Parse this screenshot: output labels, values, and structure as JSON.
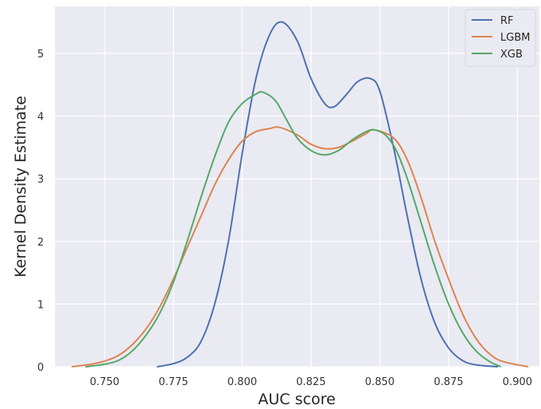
{
  "chart_data": {
    "type": "line",
    "title": "",
    "xlabel": "AUC score",
    "ylabel": "Kernel Density Estimate",
    "xlim": [
      0.732,
      0.908
    ],
    "ylim": [
      0,
      5.75
    ],
    "xticks": [
      0.75,
      0.775,
      0.8,
      0.825,
      0.85,
      0.875,
      0.9
    ],
    "xtick_labels": [
      "0.750",
      "0.775",
      "0.800",
      "0.825",
      "0.850",
      "0.875",
      "0.900"
    ],
    "yticks": [
      0,
      1,
      2,
      3,
      4,
      5
    ],
    "ytick_labels": [
      "0",
      "1",
      "2",
      "3",
      "4",
      "5"
    ],
    "grid": true,
    "legend_position": "top-right",
    "background": "#EAEAF2",
    "series": [
      {
        "name": "RF",
        "color": "#4C72B0",
        "x": [
          0.769,
          0.775,
          0.78,
          0.785,
          0.79,
          0.795,
          0.8,
          0.805,
          0.81,
          0.8145,
          0.82,
          0.825,
          0.83,
          0.8335,
          0.838,
          0.842,
          0.8465,
          0.85,
          0.855,
          0.86,
          0.865,
          0.87,
          0.875,
          0.88,
          0.885,
          0.893
        ],
        "y": [
          0.0,
          0.05,
          0.15,
          0.4,
          1.0,
          2.0,
          3.4,
          4.6,
          5.3,
          5.5,
          5.2,
          4.6,
          4.2,
          4.15,
          4.35,
          4.55,
          4.6,
          4.4,
          3.5,
          2.4,
          1.4,
          0.7,
          0.3,
          0.1,
          0.03,
          0.0
        ]
      },
      {
        "name": "LGBM",
        "color": "#DD8452",
        "x": [
          0.738,
          0.745,
          0.75,
          0.755,
          0.76,
          0.765,
          0.77,
          0.775,
          0.78,
          0.785,
          0.79,
          0.795,
          0.8,
          0.805,
          0.81,
          0.8135,
          0.82,
          0.825,
          0.83,
          0.835,
          0.84,
          0.845,
          0.848,
          0.855,
          0.86,
          0.865,
          0.87,
          0.875,
          0.88,
          0.885,
          0.89,
          0.895,
          0.904
        ],
        "y": [
          0.0,
          0.04,
          0.09,
          0.18,
          0.35,
          0.6,
          0.95,
          1.4,
          1.9,
          2.4,
          2.9,
          3.3,
          3.6,
          3.75,
          3.8,
          3.82,
          3.7,
          3.55,
          3.48,
          3.5,
          3.6,
          3.72,
          3.78,
          3.65,
          3.3,
          2.7,
          2.0,
          1.4,
          0.85,
          0.45,
          0.2,
          0.08,
          0.0
        ]
      },
      {
        "name": "XGB",
        "color": "#55A868",
        "x": [
          0.743,
          0.75,
          0.755,
          0.76,
          0.765,
          0.77,
          0.775,
          0.78,
          0.785,
          0.79,
          0.795,
          0.8,
          0.805,
          0.8075,
          0.812,
          0.816,
          0.82,
          0.825,
          0.83,
          0.835,
          0.84,
          0.845,
          0.848,
          0.852,
          0.856,
          0.86,
          0.865,
          0.87,
          0.875,
          0.88,
          0.885,
          0.89,
          0.894
        ],
        "y": [
          0.0,
          0.04,
          0.1,
          0.25,
          0.5,
          0.85,
          1.35,
          2.0,
          2.7,
          3.35,
          3.9,
          4.2,
          4.35,
          4.38,
          4.25,
          3.95,
          3.65,
          3.45,
          3.38,
          3.45,
          3.62,
          3.75,
          3.78,
          3.7,
          3.45,
          3.0,
          2.3,
          1.6,
          1.0,
          0.55,
          0.25,
          0.08,
          0.0
        ]
      }
    ]
  }
}
